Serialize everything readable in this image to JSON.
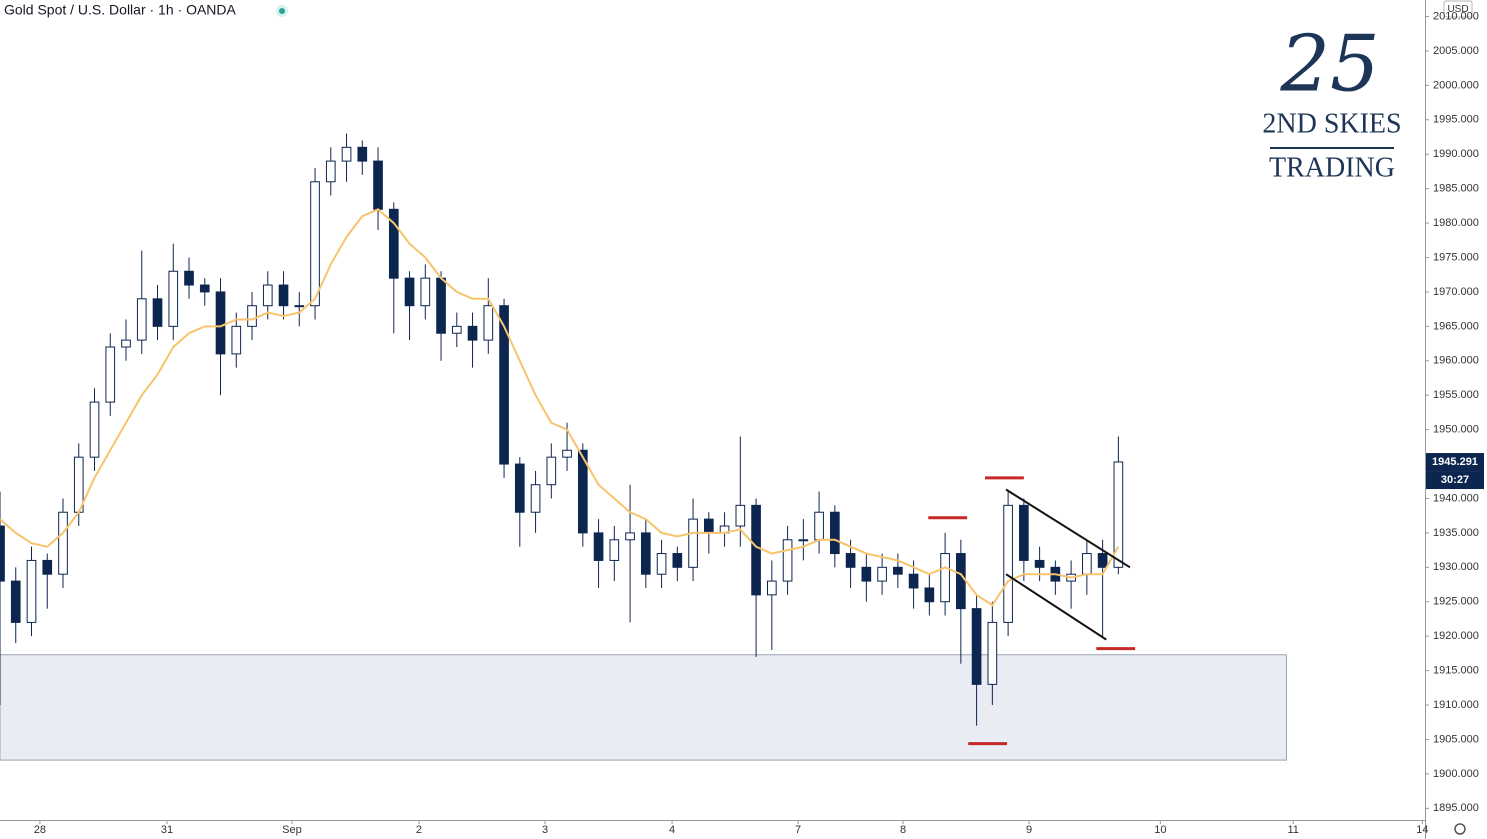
{
  "chart_data": {
    "type": "candlestick",
    "title": "Gold Spot / U.S. Dollar · 1h · OANDA",
    "currency": "USD",
    "last_price": 1945.291,
    "countdown": "30:27",
    "logo": {
      "mark": "25",
      "line1": "2ND SKIES",
      "line2": "TRADING"
    },
    "up_color": "#ffffff",
    "down_color": "#0d2650",
    "ema_color": "#f7c46c",
    "xlim": [
      0,
      271.4
    ],
    "ylim": [
      1893.3,
      2012.4
    ],
    "xticks": [
      {
        "value": 7.6,
        "label": "28"
      },
      {
        "value": 31.8,
        "label": "31"
      },
      {
        "value": 55.6,
        "label": "Sep"
      },
      {
        "value": 79.8,
        "label": "2"
      },
      {
        "value": 103.8,
        "label": "3"
      },
      {
        "value": 128,
        "label": "4"
      },
      {
        "value": 152,
        "label": "7"
      },
      {
        "value": 172,
        "label": "8"
      },
      {
        "value": 196,
        "label": "9"
      },
      {
        "value": 221,
        "label": "10"
      },
      {
        "value": 246.3,
        "label": "11"
      },
      {
        "value": 270.9,
        "label": "14"
      }
    ],
    "yticks": [
      {
        "value": 1895,
        "label": "1895.000"
      },
      {
        "value": 1900,
        "label": "1900.000"
      },
      {
        "value": 1905,
        "label": "1905.000"
      },
      {
        "value": 1910,
        "label": "1910.000"
      },
      {
        "value": 1915,
        "label": "1915.000"
      },
      {
        "value": 1920,
        "label": "1920.000"
      },
      {
        "value": 1925,
        "label": "1925.000"
      },
      {
        "value": 1930,
        "label": "1930.000"
      },
      {
        "value": 1935,
        "label": "1935.000"
      },
      {
        "value": 1940,
        "label": "1940.000"
      },
      {
        "value": 1945,
        "label": "1945.000"
      },
      {
        "value": 1950,
        "label": "1950.000"
      },
      {
        "value": 1955,
        "label": "1955.000"
      },
      {
        "value": 1960,
        "label": "1960.000"
      },
      {
        "value": 1965,
        "label": "1965.000"
      },
      {
        "value": 1970,
        "label": "1970.000"
      },
      {
        "value": 1975,
        "label": "1975.000"
      },
      {
        "value": 1980,
        "label": "1980.000"
      },
      {
        "value": 1985,
        "label": "1985.000"
      },
      {
        "value": 1990,
        "label": "1990.000"
      },
      {
        "value": 1995,
        "label": "1995.000"
      },
      {
        "value": 2000,
        "label": "2000.000"
      },
      {
        "value": 2005,
        "label": "2005.000"
      },
      {
        "value": 2010,
        "label": "2010.000"
      }
    ],
    "x": [
      0,
      3,
      6,
      9,
      12,
      15,
      18,
      21,
      24,
      27,
      30,
      33,
      36,
      39,
      42,
      45,
      48,
      51,
      54,
      57,
      60,
      63,
      66,
      69,
      72,
      75,
      78,
      81,
      84,
      87,
      90,
      93,
      96,
      99,
      102,
      105,
      108,
      111,
      114,
      117,
      120,
      123,
      126,
      129,
      132,
      135,
      138,
      141,
      144,
      147,
      150,
      153,
      156,
      159,
      162,
      165,
      168,
      171,
      174,
      177,
      180,
      183,
      186,
      189,
      192,
      195,
      198,
      201,
      204,
      207,
      210,
      213
    ],
    "open": [
      1936,
      1928,
      1922,
      1931,
      1929,
      1938,
      1946,
      1954,
      1962,
      1963,
      1969,
      1965,
      1973,
      1971,
      1970,
      1961,
      1965,
      1968,
      1971,
      1968,
      1968,
      1986,
      1989,
      1991,
      1989,
      1982,
      1972,
      1968,
      1972,
      1964,
      1965,
      1963,
      1968,
      1945,
      1938,
      1942,
      1946,
      1947,
      1935,
      1931,
      1934,
      1935,
      1929,
      1932,
      1930,
      1937,
      1935,
      1936,
      1939,
      1926,
      1928,
      1934,
      1934,
      1938,
      1932,
      1930,
      1928,
      1930,
      1929,
      1927,
      1925,
      1932,
      1924,
      1913,
      1922,
      1939,
      1931,
      1930,
      1928,
      1929,
      1932,
      1930
    ],
    "high": [
      1941,
      1930,
      1933,
      1932,
      1940,
      1948,
      1956,
      1964,
      1966,
      1976,
      1971,
      1977,
      1975,
      1972,
      1972,
      1967,
      1970,
      1973,
      1973,
      1970,
      1988,
      1991,
      1993,
      1992,
      1991,
      1983,
      1973,
      1974,
      1973,
      1967,
      1967,
      1972,
      1969,
      1946,
      1944,
      1948,
      1951,
      1948,
      1937,
      1936,
      1942,
      1937,
      1934,
      1933,
      1940,
      1938,
      1938,
      1949,
      1940,
      1931,
      1936,
      1937,
      1941,
      1939,
      1934,
      1932,
      1932,
      1932,
      1931,
      1929,
      1935,
      1934,
      1926,
      1925,
      1941,
      1940,
      1933,
      1931,
      1931,
      1934,
      1934,
      1949
    ],
    "low": [
      1910,
      1919,
      1920,
      1924,
      1927,
      1936,
      1944,
      1952,
      1960,
      1961,
      1963,
      1963,
      1969,
      1968,
      1955,
      1959,
      1963,
      1966,
      1966,
      1965,
      1966,
      1984,
      1986,
      1987,
      1979,
      1964,
      1963,
      1966,
      1960,
      1962,
      1959,
      1961,
      1943,
      1933,
      1935,
      1940,
      1944,
      1933,
      1927,
      1928,
      1922,
      1927,
      1927,
      1928,
      1928,
      1932,
      1933,
      1933,
      1917,
      1918,
      1926,
      1931,
      1932,
      1930,
      1927,
      1925,
      1926,
      1927,
      1924,
      1923,
      1923,
      1916,
      1907,
      1910,
      1920,
      1928,
      1928,
      1926,
      1924,
      1926,
      1920,
      1929
    ],
    "close": [
      1928,
      1922,
      1931,
      1929,
      1938,
      1946,
      1954,
      1962,
      1963,
      1969,
      1965,
      1973,
      1971,
      1970,
      1961,
      1965,
      1968,
      1971,
      1968,
      1968,
      1986,
      1989,
      1991,
      1989,
      1982,
      1972,
      1968,
      1972,
      1964,
      1965,
      1963,
      1968,
      1945,
      1938,
      1942,
      1946,
      1947,
      1935,
      1931,
      1934,
      1935,
      1929,
      1932,
      1930,
      1937,
      1935,
      1936,
      1939,
      1926,
      1928,
      1934,
      1934,
      1938,
      1932,
      1930,
      1928,
      1930,
      1929,
      1927,
      1925,
      1932,
      1924,
      1913,
      1922,
      1939,
      1931,
      1930,
      1928,
      1929,
      1932,
      1930,
      1945.3
    ],
    "ema": [
      1937,
      1935,
      1933.5,
      1933,
      1935,
      1938,
      1943,
      1947,
      1951,
      1955,
      1958,
      1962,
      1964,
      1965,
      1965,
      1966,
      1966,
      1967,
      1966.5,
      1967,
      1969,
      1974,
      1978,
      1981,
      1982,
      1980,
      1977,
      1975,
      1972,
      1970,
      1969,
      1969,
      1965,
      1960,
      1955,
      1951,
      1950,
      1946,
      1942,
      1940,
      1938,
      1937,
      1935,
      1934.5,
      1935,
      1935,
      1935,
      1935.5,
      1933,
      1932,
      1932.5,
      1933,
      1934,
      1934,
      1933,
      1932,
      1931.5,
      1931,
      1930,
      1929,
      1930,
      1929,
      1926,
      1924.5,
      1928,
      1929,
      1929,
      1929,
      1928.5,
      1929,
      1929,
      1933
    ],
    "zone": {
      "x": [
        0,
        245
      ],
      "y": [
        1902,
        1917.3
      ],
      "color": "#e9ecf3"
    },
    "levels": [
      {
        "x": [
          176.8,
          184.2
        ],
        "y": 1937.2
      },
      {
        "x": [
          187.6,
          195
        ],
        "y": 1943
      },
      {
        "x": [
          184.4,
          191.8
        ],
        "y": 1904.4
      },
      {
        "x": [
          208.8,
          216.2
        ],
        "y": 1918.2
      }
    ],
    "level_color": "#c62828",
    "channel": [
      {
        "x": [
          191.6,
          215.2
        ],
        "y": [
          1941.3,
          1930
        ]
      },
      {
        "x": [
          191.6,
          210.7
        ],
        "y": [
          1929,
          1919.5
        ]
      }
    ]
  }
}
